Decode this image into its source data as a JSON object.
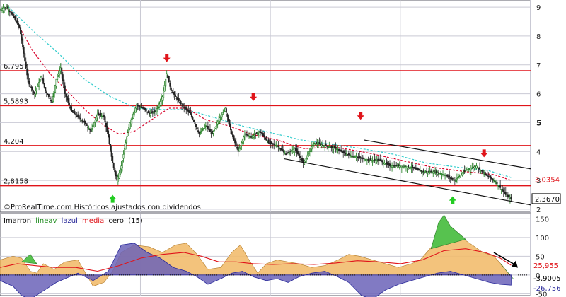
{
  "colors": {
    "grid": "#c9c9d4",
    "frame": "#5a5a66",
    "candle_up": "#1a7a1a",
    "candle_down": "#222222",
    "level_line": "#e0141a",
    "ma_fast": "#d8002a",
    "ma_slow": "#33cccc",
    "arrow_down": "#e0141a",
    "arrow_up": "#22cc22",
    "area_pos": "#f2bd6e",
    "area_neg": "#6b63b8",
    "area_green": "#57c24f",
    "osc_red": "#e0141a",
    "osc_blue": "#2a2a9a",
    "channel": "#111111"
  },
  "credit": "©ProRealTime.com Históricos ajustados con dividendos",
  "indicator_legend": {
    "name": "Imarron",
    "linea_verde": "lineav",
    "linea_azul": "lazul",
    "media": "media",
    "cero": "cero",
    "param": "(15)"
  },
  "chart_data": [
    {
      "type": "candlestick",
      "title": "",
      "xlabel": "",
      "ylabel": "",
      "ylim": [
        1.9,
        9.1
      ],
      "y_ticks": [
        "2",
        "3",
        "4",
        "5",
        "6",
        "7",
        "8",
        "9"
      ],
      "y_tick_bold": "5",
      "grid": true,
      "levels": [
        {
          "label": "6,7957",
          "value": 6.7957
        },
        {
          "label": "5,5893",
          "value": 5.5893
        },
        {
          "label": "4,204",
          "value": 4.204
        },
        {
          "label": "2,8158",
          "value": 2.8158
        }
      ],
      "last_value_labels": [
        {
          "label": "3,0354",
          "value": 3.0354,
          "color": "#e0141a",
          "box": false
        },
        {
          "label": "2,3670",
          "value": 2.367,
          "color": "#000000",
          "box": true
        }
      ],
      "price_path": [
        [
          0,
          8.9
        ],
        [
          6,
          9.0
        ],
        [
          12,
          8.7
        ],
        [
          18,
          8.3
        ],
        [
          22,
          7.4
        ],
        [
          26,
          6.4
        ],
        [
          32,
          6.0
        ],
        [
          38,
          6.6
        ],
        [
          42,
          6.1
        ],
        [
          48,
          5.7
        ],
        [
          52,
          6.5
        ],
        [
          56,
          6.9
        ],
        [
          60,
          6.0
        ],
        [
          66,
          5.4
        ],
        [
          72,
          5.2
        ],
        [
          78,
          5.0
        ],
        [
          84,
          4.7
        ],
        [
          90,
          5.3
        ],
        [
          96,
          5.2
        ],
        [
          100,
          4.5
        ],
        [
          104,
          3.6
        ],
        [
          108,
          3.0
        ],
        [
          112,
          3.5
        ],
        [
          116,
          4.3
        ],
        [
          120,
          5.0
        ],
        [
          126,
          5.6
        ],
        [
          132,
          5.5
        ],
        [
          138,
          5.3
        ],
        [
          144,
          5.4
        ],
        [
          150,
          5.9
        ],
        [
          154,
          6.7
        ],
        [
          158,
          6.1
        ],
        [
          162,
          5.9
        ],
        [
          168,
          5.6
        ],
        [
          176,
          5.3
        ],
        [
          184,
          4.6
        ],
        [
          190,
          4.9
        ],
        [
          196,
          4.6
        ],
        [
          202,
          5.1
        ],
        [
          208,
          5.5
        ],
        [
          214,
          4.6
        ],
        [
          220,
          4.0
        ],
        [
          226,
          4.6
        ],
        [
          232,
          4.5
        ],
        [
          240,
          4.7
        ],
        [
          248,
          4.3
        ],
        [
          256,
          4.2
        ],
        [
          264,
          3.9
        ],
        [
          272,
          4.1
        ],
        [
          280,
          3.6
        ],
        [
          290,
          4.3
        ],
        [
          300,
          4.2
        ],
        [
          310,
          4.1
        ],
        [
          320,
          3.9
        ],
        [
          330,
          3.8
        ],
        [
          340,
          3.7
        ],
        [
          350,
          3.7
        ],
        [
          360,
          3.5
        ],
        [
          370,
          3.5
        ],
        [
          380,
          3.45
        ],
        [
          390,
          3.3
        ],
        [
          400,
          3.3
        ],
        [
          410,
          3.2
        ],
        [
          420,
          3.0
        ],
        [
          430,
          3.35
        ],
        [
          440,
          3.5
        ],
        [
          448,
          3.2
        ],
        [
          456,
          3.0
        ],
        [
          462,
          2.75
        ],
        [
          467,
          2.5
        ],
        [
          472,
          2.35
        ]
      ],
      "ma_fast_path": [
        [
          18,
          8.3
        ],
        [
          30,
          7.5
        ],
        [
          46,
          6.7
        ],
        [
          62,
          6.1
        ],
        [
          80,
          5.4
        ],
        [
          96,
          4.9
        ],
        [
          110,
          4.6
        ],
        [
          124,
          4.7
        ],
        [
          140,
          5.1
        ],
        [
          156,
          5.5
        ],
        [
          172,
          5.5
        ],
        [
          190,
          5.1
        ],
        [
          210,
          4.9
        ],
        [
          232,
          4.6
        ],
        [
          256,
          4.4
        ],
        [
          280,
          4.1
        ],
        [
          310,
          4.15
        ],
        [
          340,
          3.95
        ],
        [
          370,
          3.7
        ],
        [
          400,
          3.45
        ],
        [
          430,
          3.3
        ],
        [
          456,
          3.2
        ],
        [
          472,
          3.0
        ]
      ],
      "ma_slow_path": [
        [
          8,
          9.0
        ],
        [
          30,
          8.2
        ],
        [
          54,
          7.4
        ],
        [
          78,
          6.5
        ],
        [
          102,
          5.9
        ],
        [
          126,
          5.5
        ],
        [
          150,
          5.45
        ],
        [
          172,
          5.45
        ],
        [
          196,
          5.2
        ],
        [
          222,
          4.9
        ],
        [
          250,
          4.65
        ],
        [
          278,
          4.4
        ],
        [
          306,
          4.25
        ],
        [
          334,
          4.1
        ],
        [
          364,
          3.9
        ],
        [
          394,
          3.6
        ],
        [
          424,
          3.45
        ],
        [
          450,
          3.35
        ],
        [
          472,
          3.1
        ]
      ],
      "channel_lines": [
        [
          [
            336,
            4.4
          ],
          [
            490,
            3.4
          ]
        ],
        [
          [
            262,
            3.75
          ],
          [
            490,
            2.15
          ]
        ]
      ],
      "arrows_down": [
        [
          154,
          7.2
        ],
        [
          234,
          5.85
        ],
        [
          333,
          5.2
        ],
        [
          447,
          3.9
        ]
      ],
      "arrows_up": [
        [
          104,
          2.4
        ],
        [
          418,
          2.35
        ]
      ]
    },
    {
      "type": "area",
      "title": "",
      "xlabel": "",
      "ylabel": "",
      "ylim": [
        -55,
        160
      ],
      "y_ticks": [
        "150",
        "100",
        "50",
        "0",
        "-50"
      ],
      "zero_dotted": true,
      "last_value_labels": [
        {
          "label": "25,955",
          "value": 25.955,
          "color": "#e0141a"
        },
        {
          "label": "-3,9005",
          "value": -3.9005,
          "color": "#000000"
        },
        {
          "label": "-26,756",
          "value": -26.756,
          "color": "#2a2a9a"
        }
      ],
      "arrow_note": "down-right",
      "area_path": [
        [
          0,
          40
        ],
        [
          12,
          50
        ],
        [
          20,
          45
        ],
        [
          28,
          10
        ],
        [
          34,
          5
        ],
        [
          40,
          30
        ],
        [
          50,
          15
        ],
        [
          60,
          35
        ],
        [
          72,
          40
        ],
        [
          86,
          -30
        ],
        [
          96,
          -20
        ],
        [
          104,
          10
        ],
        [
          112,
          60
        ],
        [
          124,
          80
        ],
        [
          138,
          75
        ],
        [
          150,
          60
        ],
        [
          162,
          80
        ],
        [
          172,
          85
        ],
        [
          182,
          55
        ],
        [
          192,
          15
        ],
        [
          204,
          20
        ],
        [
          214,
          60
        ],
        [
          222,
          80
        ],
        [
          230,
          40
        ],
        [
          238,
          5
        ],
        [
          246,
          30
        ],
        [
          256,
          40
        ],
        [
          266,
          35
        ],
        [
          276,
          30
        ],
        [
          288,
          20
        ],
        [
          300,
          25
        ],
        [
          312,
          40
        ],
        [
          322,
          55
        ],
        [
          332,
          50
        ],
        [
          344,
          40
        ],
        [
          356,
          30
        ],
        [
          368,
          20
        ],
        [
          380,
          30
        ],
        [
          388,
          40
        ],
        [
          394,
          60
        ],
        [
          400,
          80
        ],
        [
          406,
          130
        ],
        [
          412,
          150
        ],
        [
          418,
          110
        ],
        [
          426,
          100
        ],
        [
          436,
          80
        ],
        [
          446,
          60
        ],
        [
          456,
          50
        ],
        [
          464,
          25
        ],
        [
          472,
          -5
        ]
      ],
      "green_segments": [
        [
          [
            20,
            35
          ],
          [
            28,
            55
          ],
          [
            34,
            30
          ]
        ],
        [
          [
            398,
            70
          ],
          [
            405,
            140
          ],
          [
            410,
            160
          ],
          [
            416,
            130
          ],
          [
            424,
            110
          ],
          [
            430,
            95
          ]
        ],
        [
          [
            462,
            30
          ],
          [
            468,
            10
          ],
          [
            474,
            -10
          ]
        ]
      ],
      "blue_path": [
        [
          0,
          -15
        ],
        [
          12,
          -30
        ],
        [
          20,
          -55
        ],
        [
          28,
          -65
        ],
        [
          36,
          -50
        ],
        [
          44,
          -35
        ],
        [
          52,
          -20
        ],
        [
          60,
          -10
        ],
        [
          72,
          5
        ],
        [
          86,
          -15
        ],
        [
          100,
          10
        ],
        [
          112,
          80
        ],
        [
          124,
          85
        ],
        [
          136,
          60
        ],
        [
          148,
          45
        ],
        [
          160,
          20
        ],
        [
          172,
          10
        ],
        [
          182,
          -5
        ],
        [
          192,
          -25
        ],
        [
          204,
          -10
        ],
        [
          214,
          5
        ],
        [
          224,
          10
        ],
        [
          234,
          -5
        ],
        [
          246,
          -15
        ],
        [
          256,
          -10
        ],
        [
          266,
          -20
        ],
        [
          276,
          -5
        ],
        [
          288,
          5
        ],
        [
          300,
          10
        ],
        [
          312,
          -5
        ],
        [
          322,
          -20
        ],
        [
          334,
          -55
        ],
        [
          344,
          -65
        ],
        [
          356,
          -40
        ],
        [
          368,
          -25
        ],
        [
          380,
          -15
        ],
        [
          392,
          -5
        ],
        [
          404,
          5
        ],
        [
          416,
          10
        ],
        [
          428,
          0
        ],
        [
          440,
          -10
        ],
        [
          452,
          -20
        ],
        [
          462,
          -25
        ],
        [
          472,
          -27
        ]
      ],
      "red_path": [
        [
          0,
          20
        ],
        [
          16,
          30
        ],
        [
          32,
          25
        ],
        [
          50,
          20
        ],
        [
          70,
          20
        ],
        [
          90,
          10
        ],
        [
          110,
          25
        ],
        [
          130,
          45
        ],
        [
          150,
          55
        ],
        [
          170,
          60
        ],
        [
          186,
          50
        ],
        [
          202,
          35
        ],
        [
          218,
          35
        ],
        [
          234,
          30
        ],
        [
          252,
          28
        ],
        [
          270,
          30
        ],
        [
          290,
          28
        ],
        [
          310,
          32
        ],
        [
          330,
          38
        ],
        [
          350,
          35
        ],
        [
          370,
          30
        ],
        [
          390,
          40
        ],
        [
          410,
          65
        ],
        [
          430,
          70
        ],
        [
          448,
          60
        ],
        [
          462,
          45
        ],
        [
          472,
          26
        ]
      ]
    }
  ]
}
